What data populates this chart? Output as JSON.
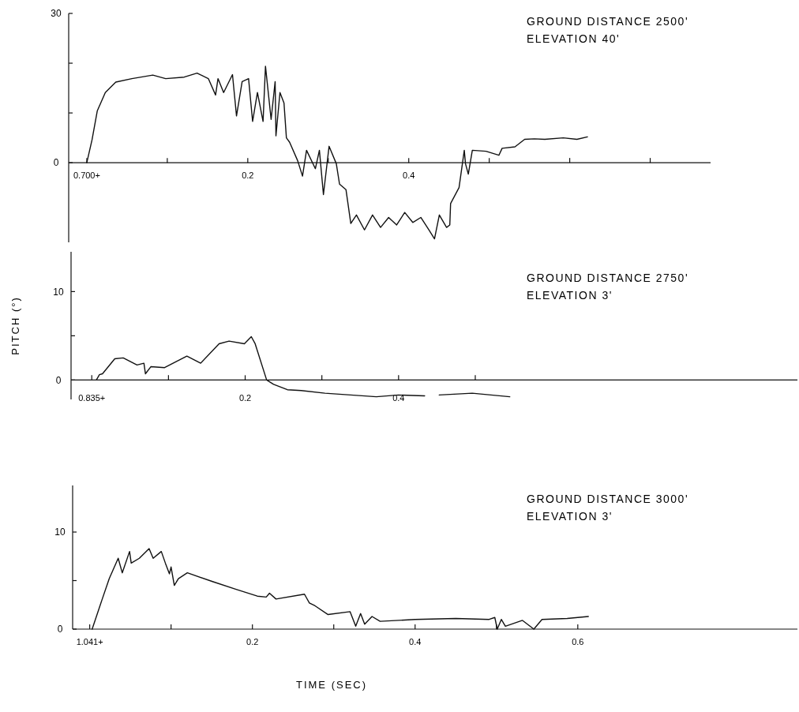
{
  "chart_data": [
    {
      "type": "line",
      "color": "#111111",
      "annotations": [
        "GROUND DISTANCE 2500'",
        "ELEVATION 40'"
      ],
      "xlim": [
        -0.0225,
        0.775
      ],
      "ylim": [
        -16,
        30
      ],
      "xticks": [
        {
          "value": 0,
          "label": "0.700+"
        },
        {
          "value": 0.1,
          "label": null
        },
        0.2,
        {
          "value": 0.3,
          "label": null
        },
        0.4,
        {
          "value": 0.5,
          "label": null
        },
        {
          "value": 0.6,
          "label": null
        },
        {
          "value": 0.7,
          "label": null
        }
      ],
      "yticks": [
        0,
        {
          "value": 10,
          "label": null
        },
        {
          "value": 20,
          "label": null
        },
        30
      ],
      "x": [
        0,
        0.0065,
        0.013,
        0.023,
        0.036,
        0.056,
        0.082,
        0.098,
        0.121,
        0.137,
        0.151,
        0.16,
        0.163,
        0.17,
        0.181,
        0.186,
        0.193,
        0.201,
        0.206,
        0.212,
        0.219,
        0.222,
        0.229,
        0.234,
        0.235,
        0.24,
        0.245,
        0.248,
        0.252,
        0.262,
        0.268,
        0.273,
        0.284,
        0.289,
        0.294,
        0.301,
        0.31,
        0.314,
        0.322,
        0.328,
        0.335,
        0.345,
        0.355,
        0.365,
        0.375,
        0.385,
        0.395,
        0.405,
        0.415,
        0.425,
        0.432,
        0.438,
        0.447,
        0.451,
        0.452,
        0.4625,
        0.469,
        0.4705,
        0.474,
        0.479,
        0.496,
        0.512,
        0.516,
        0.532,
        0.544,
        0.556,
        0.569,
        0.592,
        0.609,
        0.622
      ],
      "values": [
        0,
        4.6,
        10.4,
        14.1,
        16.2,
        16.9,
        17.6,
        16.9,
        17.2,
        18,
        16.9,
        13.6,
        16.9,
        14.1,
        17.7,
        9.4,
        16.3,
        16.9,
        8.3,
        14.1,
        8.3,
        19.4,
        8.7,
        16.3,
        5.4,
        14.1,
        12,
        5,
        4.1,
        0.4,
        -2.7,
        2.5,
        -1.2,
        2.5,
        -6.4,
        3.3,
        -0.2,
        -4.3,
        -5.4,
        -12.2,
        -10.5,
        -13.5,
        -10.5,
        -13,
        -11,
        -12.5,
        -10,
        -12,
        -11,
        -13.5,
        -15.3,
        -10.5,
        -13,
        -12.5,
        -8.2,
        -5,
        2.5,
        -0.2,
        -2.3,
        2.5,
        2.3,
        1.5,
        2.9,
        3.2,
        4.7,
        4.8,
        4.7,
        5,
        4.7,
        5.2
      ]
    },
    {
      "type": "line",
      "color": "#111111",
      "ylabel": "PITCH (°)",
      "annotations": [
        "GROUND DISTANCE 2750'",
        "ELEVATION 3'"
      ],
      "xlim": [
        -0.027,
        0.92
      ],
      "ylim": [
        -2.2,
        14.5
      ],
      "xticks": [
        {
          "value": 0,
          "label": "0.835+"
        },
        {
          "value": 0.1,
          "label": null
        },
        0.2,
        {
          "value": 0.3,
          "label": null
        },
        0.4,
        {
          "value": 0.5,
          "label": null
        }
      ],
      "yticks": [
        0,
        {
          "value": 5,
          "label": null
        },
        10
      ],
      "x": [
        0.006,
        0.01,
        0.014,
        0.03,
        0.041,
        0.059,
        0.068,
        0.07,
        0.077,
        0.095,
        0.124,
        0.142,
        0.166,
        0.179,
        0.199,
        0.208,
        0.213,
        0.228,
        0.237,
        0.255,
        0.273,
        0.304,
        0.371,
        0.4,
        0.434,
        0.445,
        0.453,
        0.496,
        0.545
      ],
      "values": [
        0,
        0.6,
        0.7,
        2.4,
        2.5,
        1.7,
        1.9,
        0.7,
        1.5,
        1.4,
        2.7,
        1.9,
        4.1,
        4.4,
        4.1,
        4.9,
        4.1,
        0,
        -0.5,
        -1.1,
        -1.2,
        -1.5,
        -1.9,
        -1.7,
        -1.8,
        null,
        -1.7,
        -1.5,
        -1.9
      ]
    },
    {
      "type": "line",
      "color": "#111111",
      "xlabel": "TIME (SEC)",
      "annotations": [
        "GROUND DISTANCE 3000'",
        "ELEVATION 3'"
      ],
      "xlim": [
        -0.021,
        0.87
      ],
      "ylim": [
        0,
        14.8
      ],
      "xticks": [
        {
          "value": 0,
          "label": "1.041+"
        },
        {
          "value": 0.1,
          "label": null
        },
        0.2,
        {
          "value": 0.3,
          "label": null
        },
        0.4,
        {
          "value": 0.5,
          "label": null
        },
        0.6
      ],
      "yticks": [
        0,
        {
          "value": 5,
          "label": null
        },
        10
      ],
      "x": [
        0.003,
        0.015,
        0.024,
        0.035,
        0.04,
        0.049,
        0.051,
        0.061,
        0.073,
        0.078,
        0.088,
        0.093,
        0.098,
        0.1,
        0.104,
        0.109,
        0.12,
        0.151,
        0.18,
        0.206,
        0.217,
        0.221,
        0.229,
        0.264,
        0.27,
        0.277,
        0.293,
        0.32,
        0.327,
        0.333,
        0.338,
        0.347,
        0.357,
        0.4,
        0.45,
        0.491,
        0.498,
        0.501,
        0.506,
        0.511,
        0.532,
        0.546,
        0.556,
        0.587,
        0.613
      ],
      "values": [
        0,
        3,
        5.2,
        7.3,
        5.8,
        8,
        6.8,
        7.3,
        8.3,
        7.3,
        8,
        6.8,
        5.7,
        6.4,
        4.5,
        5.2,
        5.8,
        4.9,
        4.1,
        3.4,
        3.3,
        3.7,
        3.1,
        3.6,
        2.7,
        2.4,
        1.5,
        1.8,
        0.3,
        1.6,
        0.5,
        1.3,
        0.8,
        1,
        1.1,
        1,
        1.2,
        0,
        1,
        0.3,
        0.9,
        0,
        1,
        1.1,
        1.3
      ]
    }
  ]
}
